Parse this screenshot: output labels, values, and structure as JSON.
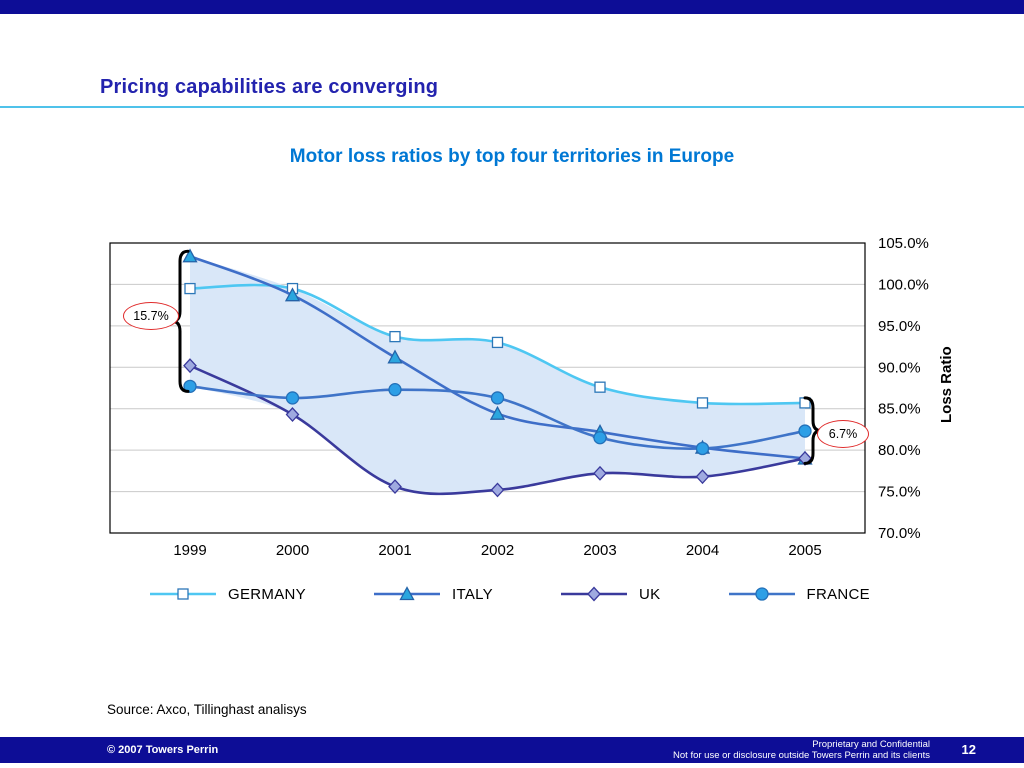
{
  "colors": {
    "navy": "#0D0D96",
    "title_blue": "#2323AE",
    "rule_blue": "#4FC2EA",
    "chart_title_blue": "#0078D4",
    "annotation_red": "#E02B2B"
  },
  "slide": {
    "title": "Pricing capabilities are converging",
    "source": "Source: Axco, Tillinghast analisys",
    "footer": {
      "copyright": "© 2007 Towers Perrin",
      "confidential_line1": "Proprietary and Confidential",
      "confidential_line2": "Not for use or disclosure outside Towers Perrin and its clients",
      "page_number": "12"
    }
  },
  "chart_data": {
    "type": "line",
    "title": "Motor loss ratios by top four territories in Europe",
    "x": [
      "1999",
      "2000",
      "2001",
      "2002",
      "2003",
      "2004",
      "2005"
    ],
    "series": [
      {
        "name": "GERMANY",
        "marker": "square",
        "color": "#4EC7F2",
        "marker_fill": "#FFFFFF",
        "marker_stroke": "#2C77B8",
        "values": [
          99.5,
          99.5,
          93.7,
          93.0,
          87.6,
          85.7,
          85.7
        ]
      },
      {
        "name": "ITALY",
        "marker": "triangle",
        "color": "#3E6EC8",
        "marker_fill": "#2BA6DE",
        "marker_stroke": "#2563A8",
        "values": [
          103.4,
          98.7,
          91.2,
          84.4,
          82.2,
          80.3,
          79.0
        ]
      },
      {
        "name": "UK",
        "marker": "diamond",
        "color": "#3A3A9C",
        "marker_fill": "#9FAAE0",
        "marker_stroke": "#3A3A9C",
        "values": [
          90.2,
          84.3,
          75.6,
          75.2,
          77.2,
          76.8,
          79.0
        ]
      },
      {
        "name": "FRANCE",
        "marker": "circle",
        "color": "#3F74C8",
        "marker_fill": "#2D9FE6",
        "marker_stroke": "#2470B8",
        "values": [
          87.7,
          86.3,
          87.3,
          86.3,
          81.5,
          80.2,
          82.3
        ]
      }
    ],
    "ylabel": "Loss Ratio",
    "ylim": [
      70,
      105
    ],
    "ytick_step": 5,
    "ytick_labels": [
      "105.0%",
      "100.0%",
      "95.0%",
      "90.0%",
      "85.0%",
      "80.0%",
      "75.0%",
      "70.0%"
    ],
    "band_fill": "#D9E7F8",
    "grid": true,
    "legend_position": "bottom",
    "annotations": {
      "left_spread": "15.7%",
      "right_spread": "6.7%"
    }
  }
}
